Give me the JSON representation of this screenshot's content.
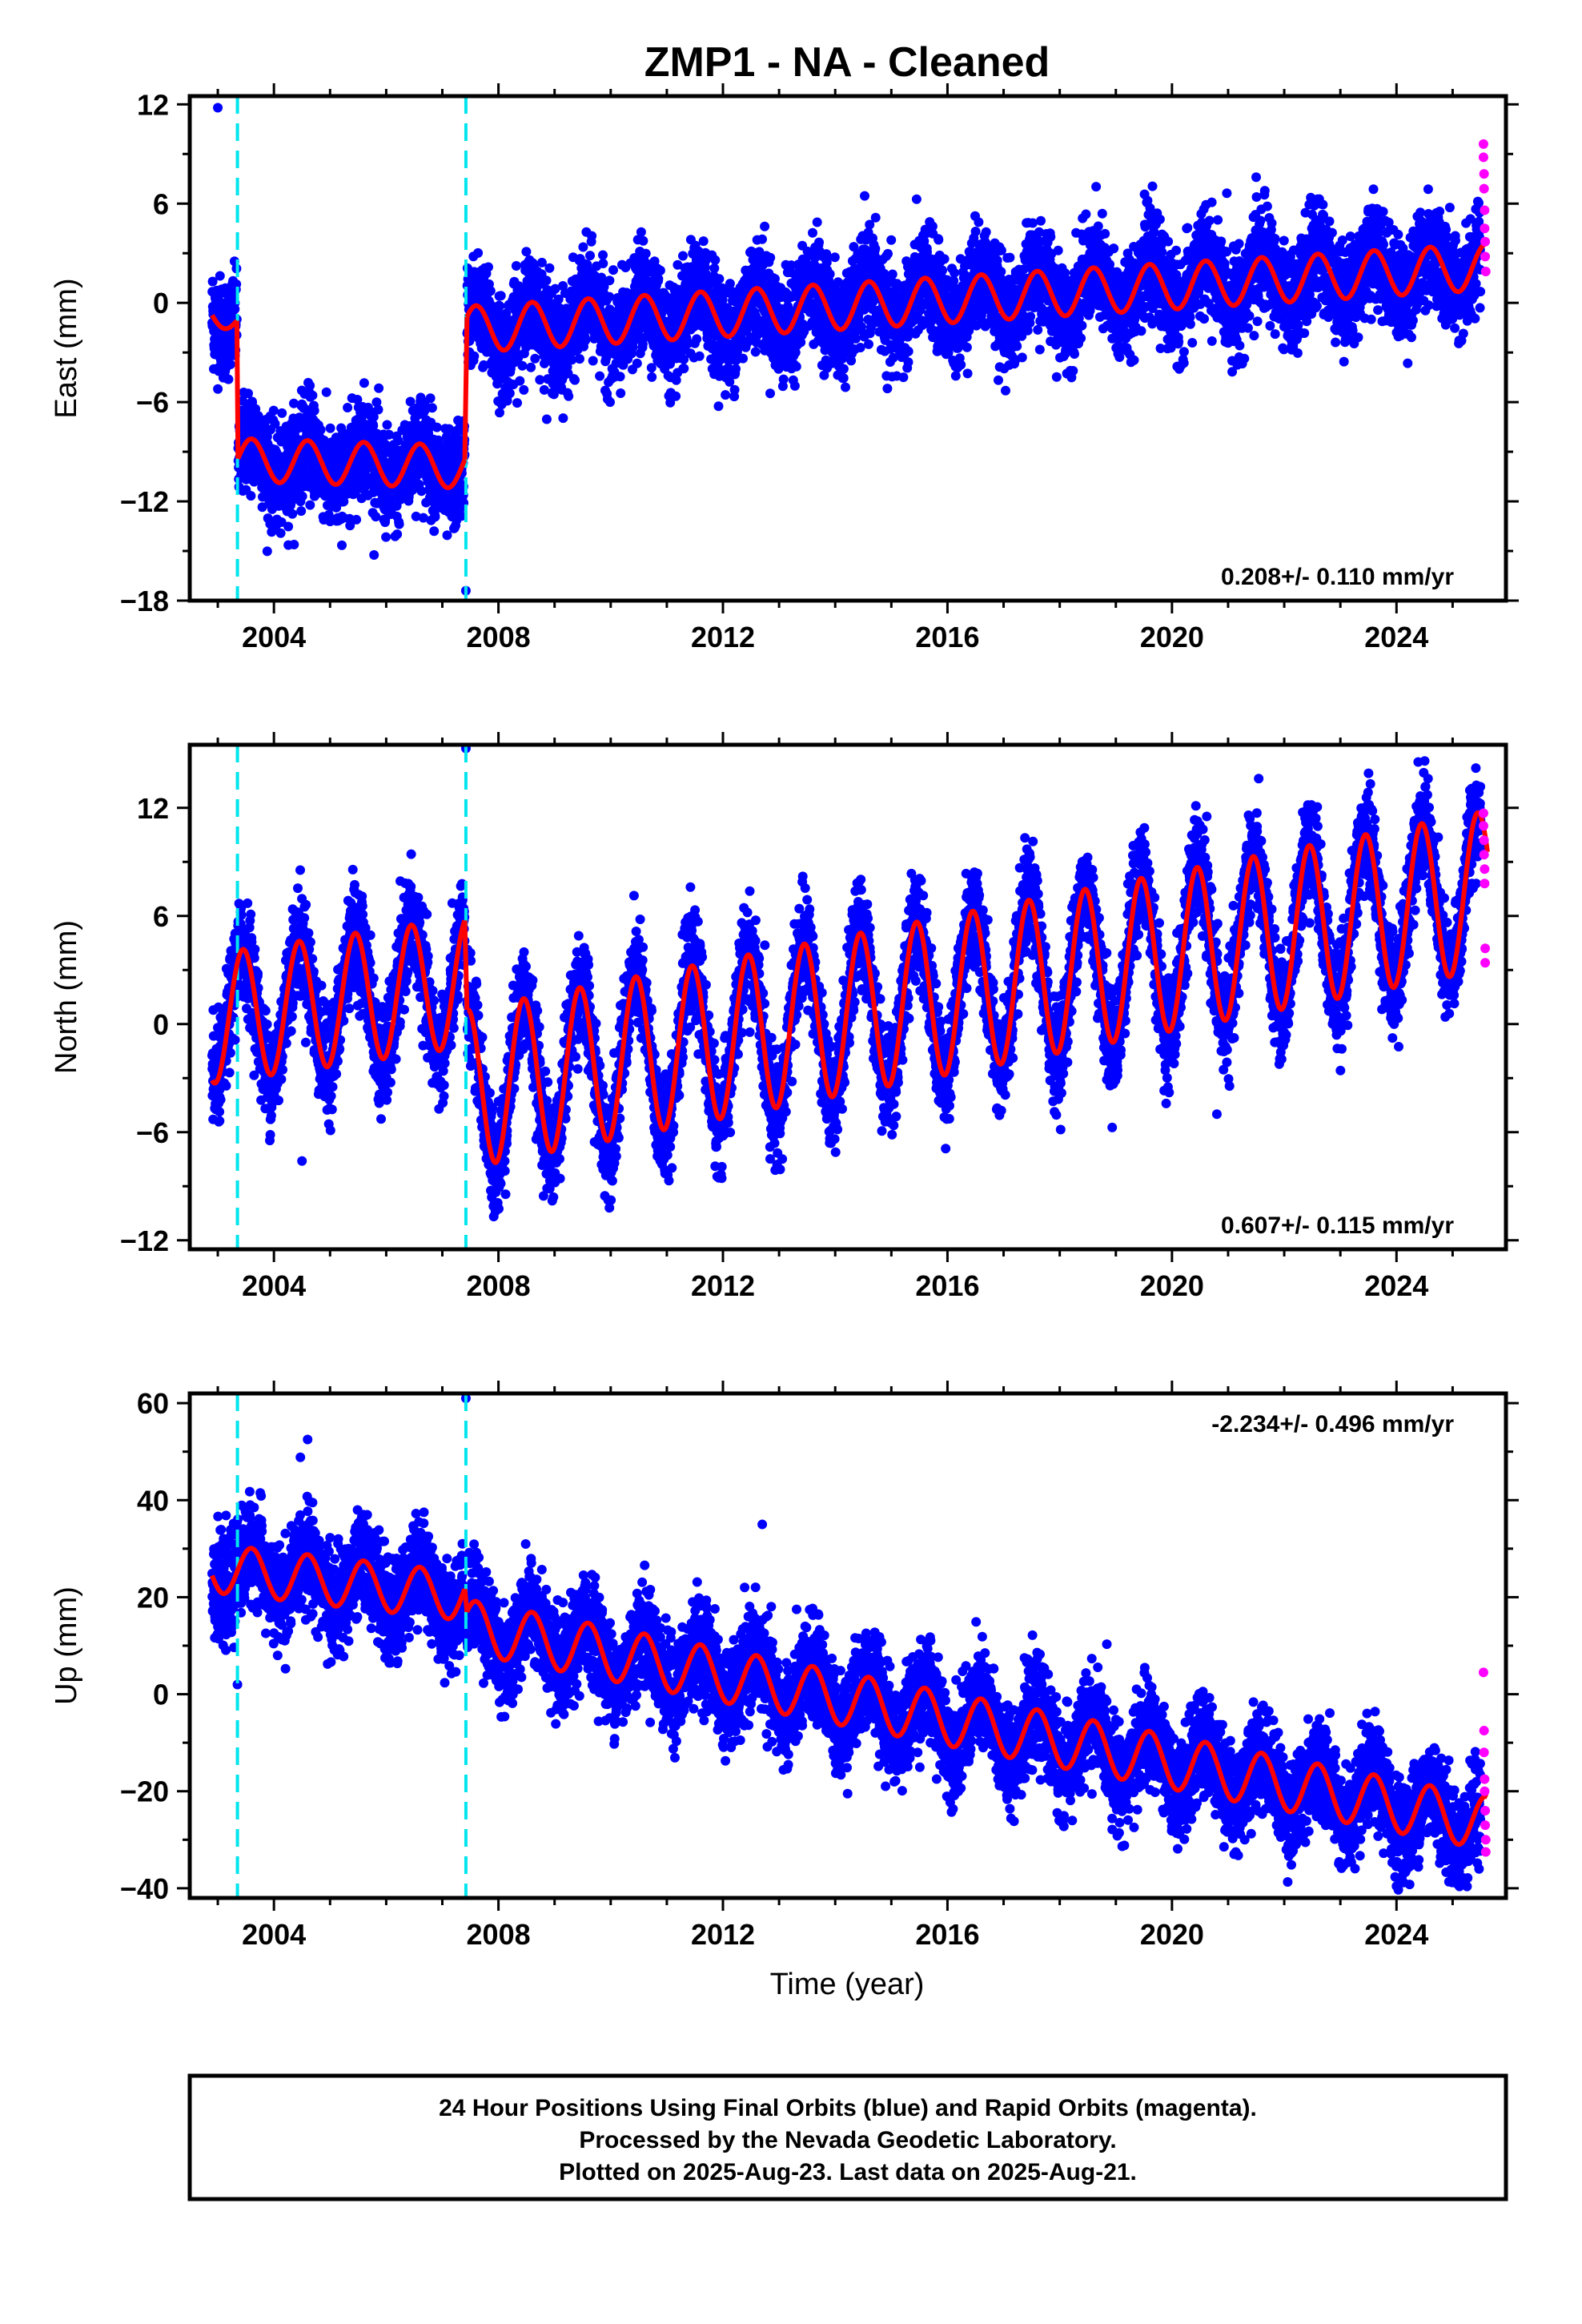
{
  "title": "ZMP1  - NA - Cleaned",
  "colors": {
    "final_orbits": "#0000ff",
    "rapid_orbits": "#ff00ff",
    "model": "#ff0000",
    "event_line": "#00e5ee",
    "frame": "#000000"
  },
  "x_axis": {
    "label": "Time (year)",
    "range": [
      2002.5,
      2025.95
    ],
    "ticks": [
      2004,
      2008,
      2012,
      2016,
      2020,
      2024
    ],
    "minor_step": 1
  },
  "event_lines": [
    2003.35,
    2007.42
  ],
  "footer": {
    "line1": "24 Hour Positions Using Final Orbits (blue) and Rapid Orbits (magenta).",
    "line2": "Processed by the Nevada Geodetic Laboratory.",
    "line3": "Plotted on 2025-Aug-23. Last data on 2025-Aug-21."
  },
  "chart_data": [
    {
      "type": "scatter",
      "panel": "east",
      "ylabel": "East (mm)",
      "ylim": [
        -18,
        12.5
      ],
      "yticks": [
        12,
        6,
        0,
        -6,
        -12,
        -18
      ],
      "rate": "0.208+/- 0.110 mm/yr",
      "rate_position": "bottom-right",
      "model": {
        "segments": [
          {
            "start": 2002.9,
            "end": 2003.34,
            "base_at_start": -0.5,
            "trend_mm_per_yr": -1.2,
            "amplitude": 0.8
          },
          {
            "start": 2003.36,
            "end": 2007.4,
            "base_at_start": -9.5,
            "trend_mm_per_yr": -0.1,
            "amplitude": 1.3
          },
          {
            "start": 2007.44,
            "end": 2025.62,
            "base_at_start": -1.6,
            "trend_mm_per_yr": 0.208,
            "amplitude": 1.4
          }
        ],
        "phase_peak": 0.6
      },
      "scatter_sd": 1.5,
      "outliers": [
        {
          "x": 2003.0,
          "y": 11.8
        },
        {
          "x": 2007.42,
          "y": -17.4
        },
        {
          "x": 2021.5,
          "y": 7.6
        }
      ],
      "rapid_points": [
        {
          "x": 2025.55,
          "y": 9.6
        },
        {
          "x": 2025.55,
          "y": 8.8
        },
        {
          "x": 2025.56,
          "y": 7.8
        },
        {
          "x": 2025.56,
          "y": 6.9
        },
        {
          "x": 2025.57,
          "y": 5.6
        },
        {
          "x": 2025.57,
          "y": 4.5
        },
        {
          "x": 2025.58,
          "y": 3.7
        },
        {
          "x": 2025.58,
          "y": 2.8
        },
        {
          "x": 2025.59,
          "y": 1.9
        }
      ]
    },
    {
      "type": "scatter",
      "panel": "north",
      "ylabel": "North (mm)",
      "ylim": [
        -12.5,
        15.5
      ],
      "yticks": [
        12,
        6,
        0,
        -6,
        -12
      ],
      "rate": "0.607+/- 0.115 mm/yr",
      "rate_position": "bottom-right",
      "model": {
        "segments": [
          {
            "start": 2002.9,
            "end": 2007.4,
            "base_at_start": 0.3,
            "trend_mm_per_yr": 0.45,
            "amplitude": 3.6
          },
          {
            "start": 2007.44,
            "end": 2025.62,
            "base_at_start": -3.6,
            "trend_mm_per_yr": 0.607,
            "amplitude": 4.4
          }
        ],
        "phase_peak": 0.45
      },
      "scatter_sd": 1.4,
      "outliers": [
        {
          "x": 2007.42,
          "y": 15.3
        },
        {
          "x": 2004.5,
          "y": -7.6
        },
        {
          "x": 2020.8,
          "y": -5.0
        }
      ],
      "rapid_points": [
        {
          "x": 2025.55,
          "y": 11.7
        },
        {
          "x": 2025.55,
          "y": 11.0
        },
        {
          "x": 2025.56,
          "y": 10.2
        },
        {
          "x": 2025.56,
          "y": 9.4
        },
        {
          "x": 2025.57,
          "y": 8.6
        },
        {
          "x": 2025.57,
          "y": 7.8
        },
        {
          "x": 2025.58,
          "y": 4.2
        },
        {
          "x": 2025.58,
          "y": 3.4
        }
      ]
    },
    {
      "type": "scatter",
      "panel": "up",
      "ylabel": "Up (mm)",
      "ylim": [
        -42,
        62
      ],
      "yticks": [
        60,
        40,
        20,
        0,
        -20,
        -40
      ],
      "rate": "-2.234+/- 0.496 mm/yr",
      "rate_position": "top-right",
      "model": {
        "segments": [
          {
            "start": 2002.9,
            "end": 2007.4,
            "base_at_start": 26.0,
            "trend_mm_per_yr": -1.3,
            "amplitude": 5.0
          },
          {
            "start": 2007.44,
            "end": 2025.62,
            "base_at_start": 14.0,
            "trend_mm_per_yr": -2.234,
            "amplitude": 5.5
          }
        ],
        "phase_peak": 0.6
      },
      "scatter_sd": 5.0,
      "outliers": [
        {
          "x": 2007.42,
          "y": 61.0
        },
        {
          "x": 2004.6,
          "y": 52.5
        },
        {
          "x": 2012.7,
          "y": 35.0
        },
        {
          "x": 2003.35,
          "y": 2.0
        }
      ],
      "rapid_points": [
        {
          "x": 2025.55,
          "y": 4.5
        },
        {
          "x": 2025.56,
          "y": -7.5
        },
        {
          "x": 2025.56,
          "y": -12.0
        },
        {
          "x": 2025.57,
          "y": -17.5
        },
        {
          "x": 2025.57,
          "y": -20.0
        },
        {
          "x": 2025.58,
          "y": -24.0
        },
        {
          "x": 2025.58,
          "y": -27.0
        },
        {
          "x": 2025.59,
          "y": -30.0
        },
        {
          "x": 2025.59,
          "y": -32.5
        }
      ]
    }
  ]
}
